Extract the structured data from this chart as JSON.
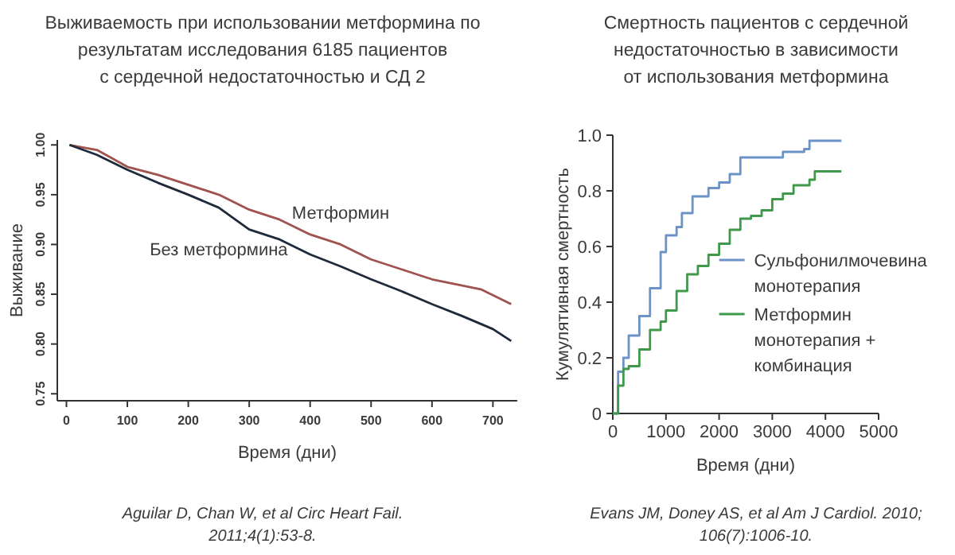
{
  "chart_data": [
    {
      "type": "line",
      "title": "Выживаемость при использовании метформина по\nрезультатам исследования 6185 пациентов\nс сердечной недостаточностью и СД 2",
      "xlabel": "Время (дни)",
      "ylabel": "Выживание",
      "xlim": [
        -15,
        740
      ],
      "xticks": [
        0,
        100,
        200,
        300,
        400,
        500,
        600,
        700
      ],
      "ylim": [
        0.743,
        1.005
      ],
      "yticks": [
        {
          "value": 0.75,
          "label": "0.75"
        },
        {
          "value": 0.8,
          "label": "0.80"
        },
        {
          "value": 0.85,
          "label": "0.85"
        },
        {
          "value": 0.9,
          "label": "0.90"
        },
        {
          "value": 0.95,
          "label": "0.95"
        },
        {
          "value": 1,
          "label": "1.00"
        }
      ],
      "grid": false,
      "legend": false,
      "series": [
        {
          "name": "Метформин",
          "color": "#a0524f",
          "x": [
            5,
            50,
            100,
            150,
            200,
            250,
            300,
            350,
            400,
            450,
            500,
            550,
            600,
            640,
            680,
            730
          ],
          "values": [
            1.0,
            0.995,
            0.978,
            0.97,
            0.96,
            0.95,
            0.935,
            0.925,
            0.91,
            0.9,
            0.885,
            0.875,
            0.865,
            0.86,
            0.855,
            0.84
          ]
        },
        {
          "name": "Без метформина",
          "color": "#1e2a3a",
          "x": [
            5,
            50,
            100,
            150,
            200,
            250,
            300,
            350,
            400,
            450,
            500,
            550,
            600,
            650,
            700,
            730
          ],
          "values": [
            1.0,
            0.99,
            0.975,
            0.962,
            0.95,
            0.937,
            0.915,
            0.905,
            0.89,
            0.878,
            0.865,
            0.853,
            0.84,
            0.828,
            0.815,
            0.803
          ]
        }
      ],
      "annotations": [
        "Aguilar D, Chan W,  et al Circ Heart Fail. 2011;4(1):53-8."
      ]
    },
    {
      "type": "step",
      "title": "Смертность пациентов с сердечной\nнедостаточностью в зависимости\nот использования метформина",
      "xlabel": "Время (дни)",
      "ylabel": "Кумулятивная смертность",
      "xlim": [
        0,
        5000
      ],
      "xticks": [
        0,
        1000,
        2000,
        3000,
        4000,
        5000
      ],
      "ylim": [
        0,
        1
      ],
      "yticks": [
        0,
        0.2,
        0.4,
        0.6,
        0.8,
        {
          "value": 1,
          "label": "1.0"
        }
      ],
      "grid": false,
      "legend": "right",
      "series": [
        {
          "name": "Сульфонилмочевина монотерапия",
          "color": "#6b93c8",
          "x": [
            0,
            100,
            200,
            300,
            500,
            700,
            900,
            1000,
            1200,
            1300,
            1500,
            1800,
            2000,
            2200,
            2400,
            3000,
            3200,
            3600,
            3700,
            4300
          ],
          "values": [
            0,
            0.15,
            0.2,
            0.28,
            0.35,
            0.45,
            0.58,
            0.64,
            0.67,
            0.72,
            0.78,
            0.81,
            0.83,
            0.86,
            0.92,
            0.92,
            0.94,
            0.95,
            0.98,
            0.98
          ]
        },
        {
          "name": "Метформин монотерапия + комбинация",
          "color": "#3e9a4a",
          "x": [
            0,
            100,
            200,
            300,
            500,
            700,
            900,
            1000,
            1200,
            1400,
            1600,
            1800,
            2000,
            2200,
            2400,
            2600,
            2800,
            3000,
            3200,
            3400,
            3700,
            3800,
            4300
          ],
          "values": [
            0,
            0.1,
            0.16,
            0.17,
            0.23,
            0.3,
            0.33,
            0.37,
            0.44,
            0.5,
            0.53,
            0.57,
            0.61,
            0.66,
            0.7,
            0.71,
            0.73,
            0.77,
            0.79,
            0.82,
            0.84,
            0.87,
            0.87
          ]
        }
      ],
      "annotations": [
        "Evans JM, Doney AS, et al Am J Cardiol. 2010; 106(7):1006-10."
      ]
    }
  ]
}
